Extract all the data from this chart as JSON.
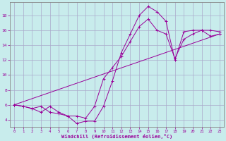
{
  "xlabel": "Windchill (Refroidissement éolien,°C)",
  "bg_color": "#c8ecec",
  "line_color": "#990099",
  "grid_color": "#aaaacc",
  "xlim": [
    -0.5,
    23.5
  ],
  "ylim": [
    3.0,
    19.8
  ],
  "xticks": [
    0,
    1,
    2,
    3,
    4,
    5,
    6,
    7,
    8,
    9,
    10,
    11,
    12,
    13,
    14,
    15,
    16,
    17,
    18,
    19,
    20,
    21,
    22,
    23
  ],
  "yticks": [
    4,
    6,
    8,
    10,
    12,
    14,
    16,
    18
  ],
  "line1_x": [
    0,
    1,
    2,
    3,
    4,
    5,
    6,
    7,
    8,
    9,
    10,
    11,
    12,
    13,
    14,
    15,
    16,
    17,
    18,
    19,
    20,
    21,
    22,
    23
  ],
  "line1_y": [
    6.0,
    5.8,
    5.5,
    5.0,
    5.8,
    5.0,
    4.5,
    3.5,
    3.8,
    3.8,
    5.8,
    9.2,
    13.0,
    15.5,
    18.0,
    19.2,
    18.5,
    17.2,
    12.0,
    15.8,
    16.0,
    16.0,
    16.0,
    15.8
  ],
  "line2_x": [
    0,
    1,
    2,
    3,
    4,
    5,
    6,
    7,
    8,
    9,
    10,
    11,
    12,
    13,
    14,
    15,
    16,
    17,
    18,
    19,
    20,
    21,
    22,
    23
  ],
  "line2_y": [
    6.0,
    5.8,
    5.5,
    5.8,
    5.0,
    4.8,
    4.5,
    4.5,
    4.2,
    5.8,
    9.5,
    11.0,
    12.5,
    14.5,
    16.5,
    17.5,
    16.0,
    15.5,
    12.2,
    14.8,
    15.5,
    16.0,
    15.2,
    15.5
  ],
  "line3_x": [
    0,
    23
  ],
  "line3_y": [
    6.0,
    15.5
  ]
}
